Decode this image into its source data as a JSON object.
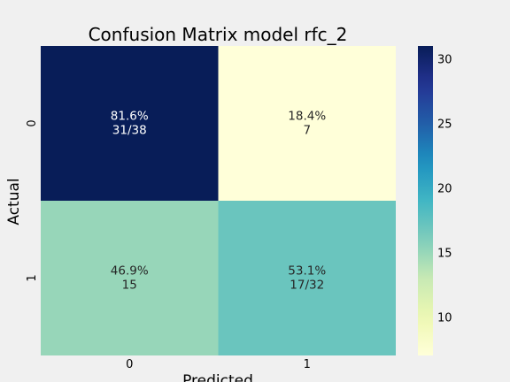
{
  "chart_data": {
    "type": "heatmap",
    "title": "Confusion Matrix model rfc_2",
    "xlabel": "Predicted",
    "ylabel": "Actual",
    "x_categories": [
      "0",
      "1"
    ],
    "y_categories": [
      "0",
      "1"
    ],
    "values": [
      [
        31,
        7
      ],
      [
        15,
        17
      ]
    ],
    "annotations": [
      [
        [
          "81.6%",
          "31/38"
        ],
        [
          "18.4%",
          "7"
        ]
      ],
      [
        [
          "46.9%",
          "15"
        ],
        [
          "53.1%",
          "17/32"
        ]
      ]
    ],
    "colormap": "YlGnBu",
    "colorbar": {
      "range": [
        7,
        31
      ],
      "ticks": [
        10,
        15,
        20,
        25,
        30
      ]
    },
    "background_color": "#f0f0f0",
    "grid": false
  }
}
